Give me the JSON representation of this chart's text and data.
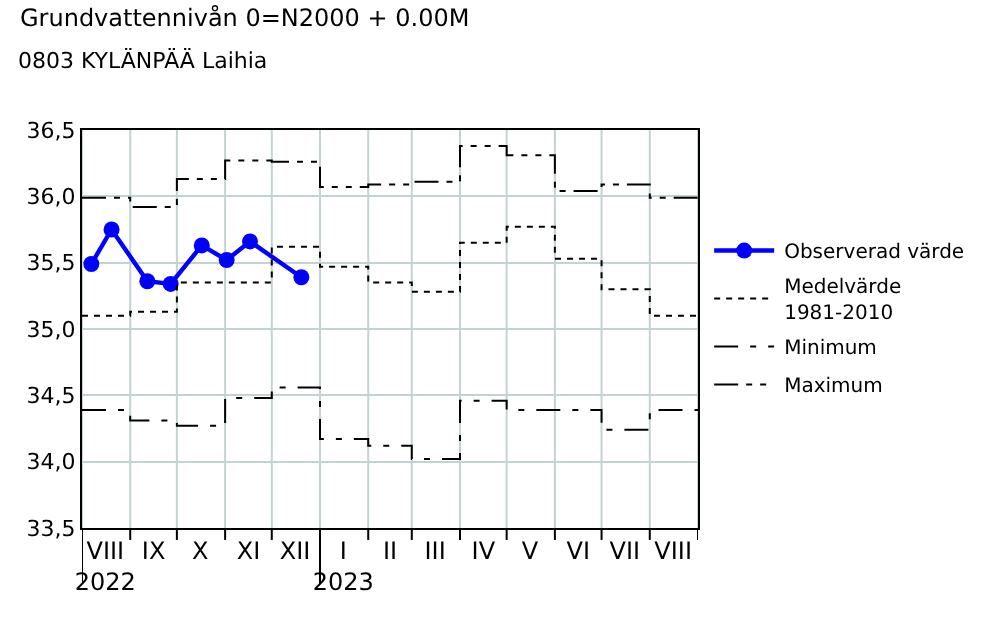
{
  "chart_data": {
    "type": "line",
    "title": "Grundvattennivån 0=N2000 + 0.00M",
    "subtitle": "0803 KYLÄNPÄÄ Laihia",
    "xlim": [
      "2022-08-01",
      "2023-09-01"
    ],
    "xticks": [
      {
        "value": "2022-08-01",
        "label": null
      },
      {
        "value": "2022-08-16",
        "label": "VIII\n2022"
      },
      {
        "value": "2022-09-01",
        "label": null
      },
      {
        "value": "2022-09-16",
        "label": "IX"
      },
      {
        "value": "2022-10-01",
        "label": null
      },
      {
        "value": "2022-10-16",
        "label": "X"
      },
      {
        "value": "2022-11-01",
        "label": null
      },
      {
        "value": "2022-11-16",
        "label": "XI"
      },
      {
        "value": "2022-12-01",
        "label": null
      },
      {
        "value": "2022-12-16",
        "label": "XII"
      },
      {
        "value": "2023-01-01",
        "label": null
      },
      {
        "value": "2023-01-16",
        "label": "I\n2023"
      },
      {
        "value": "2023-02-01",
        "label": null
      },
      {
        "value": "2023-02-15",
        "label": "II"
      },
      {
        "value": "2023-03-01",
        "label": null
      },
      {
        "value": "2023-03-16",
        "label": "III"
      },
      {
        "value": "2023-04-01",
        "label": null
      },
      {
        "value": "2023-04-16",
        "label": "IV"
      },
      {
        "value": "2023-05-01",
        "label": null
      },
      {
        "value": "2023-05-16",
        "label": "V"
      },
      {
        "value": "2023-06-01",
        "label": null
      },
      {
        "value": "2023-06-16",
        "label": "VI"
      },
      {
        "value": "2023-07-01",
        "label": null
      },
      {
        "value": "2023-07-16",
        "label": "VII"
      },
      {
        "value": "2023-08-01",
        "label": null
      },
      {
        "value": "2023-08-16",
        "label": "VIII"
      },
      {
        "value": "2023-09-01",
        "label": null
      }
    ],
    "ylim": [
      33.5,
      36.5
    ],
    "yticks": [
      {
        "value": 33.5,
        "label": "33,5"
      },
      {
        "value": 34.0,
        "label": "34,0"
      },
      {
        "value": 34.5,
        "label": "34,5"
      },
      {
        "value": 35.0,
        "label": "35,0"
      },
      {
        "value": 35.5,
        "label": "35,5"
      },
      {
        "value": 36.0,
        "label": "36,0"
      },
      {
        "value": 36.5,
        "label": "36,5"
      }
    ],
    "grid": true,
    "legend": "right",
    "series": [
      {
        "name": "Observerad värde",
        "color": "#0000ff",
        "marker": "circle",
        "line_style": "solid",
        "x": [
          "2022-08-07",
          "2022-08-20",
          "2022-09-12",
          "2022-09-27",
          "2022-10-17",
          "2022-11-02",
          "2022-11-17",
          "2022-12-20"
        ],
        "values": [
          35.49,
          35.75,
          35.36,
          35.34,
          35.63,
          35.52,
          35.66,
          35.39
        ]
      },
      {
        "name": "Medelvärde\n1981-2010",
        "type": "step",
        "color": "#000000",
        "line_style": "dotted",
        "x": [
          "2022-08-01",
          "2022-09-01",
          "2022-10-01",
          "2022-11-01",
          "2022-12-01",
          "2023-01-01",
          "2023-02-01",
          "2023-03-01",
          "2023-04-01",
          "2023-05-01",
          "2023-06-01",
          "2023-07-01",
          "2023-08-01",
          "2023-09-01"
        ],
        "values": [
          35.1,
          35.13,
          35.35,
          35.35,
          35.62,
          35.47,
          35.35,
          35.28,
          35.65,
          35.77,
          35.53,
          35.3,
          35.1,
          35.1
        ]
      },
      {
        "name": "Minimum",
        "type": "step",
        "color": "#000000",
        "line_style": "dashed",
        "x": [
          "2022-08-01",
          "2022-09-01",
          "2022-10-01",
          "2022-11-01",
          "2022-12-01",
          "2023-01-01",
          "2023-02-01",
          "2023-03-01",
          "2023-04-01",
          "2023-05-01",
          "2023-06-01",
          "2023-07-01",
          "2023-08-01",
          "2023-09-01"
        ],
        "values": [
          34.39,
          34.31,
          34.27,
          34.48,
          34.56,
          34.17,
          34.12,
          34.02,
          34.46,
          34.39,
          34.39,
          34.24,
          34.39,
          34.39
        ]
      },
      {
        "name": "Maximum",
        "type": "step",
        "color": "#000000",
        "line_style": "dashed",
        "x": [
          "2022-08-01",
          "2022-09-01",
          "2022-10-01",
          "2022-11-01",
          "2022-12-01",
          "2023-01-01",
          "2023-02-01",
          "2023-03-01",
          "2023-04-01",
          "2023-05-01",
          "2023-06-01",
          "2023-07-01",
          "2023-08-01",
          "2023-09-01"
        ],
        "values": [
          35.99,
          35.92,
          36.13,
          36.27,
          36.26,
          36.07,
          36.09,
          36.11,
          36.38,
          36.31,
          36.04,
          36.09,
          35.99,
          35.99
        ]
      }
    ]
  }
}
